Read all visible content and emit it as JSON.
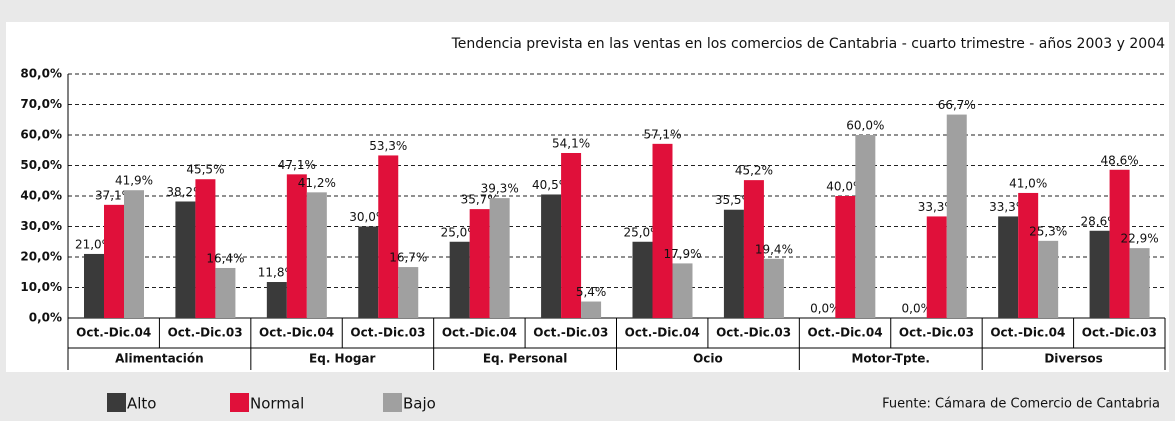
{
  "chart_data": {
    "type": "bar",
    "title": "Tendencia prevista en las ventas en los comercios de Cantabria - cuarto trimestre - años 2003 y 2004",
    "source": "Fuente: Cámara de Comercio de Cantabria",
    "categories": [
      "Oct.-Dic.04",
      "Oct.-Dic.03",
      "Oct.-Dic.04",
      "Oct.-Dic.03",
      "Oct.-Dic.04",
      "Oct.-Dic.03",
      "Oct.-Dic.04",
      "Oct.-Dic.03",
      "Oct.-Dic.04",
      "Oct.-Dic.03",
      "Oct.-Dic.04",
      "Oct.-Dic.03"
    ],
    "groups": [
      "Alimentación",
      "Eq. Hogar",
      "Eq. Personal",
      "Ocio",
      "Motor-Tpte.",
      "Diversos"
    ],
    "series": [
      {
        "name": "Alto",
        "color": "#3a3a3a",
        "values": [
          21.0,
          38.2,
          11.8,
          30.0,
          25.0,
          40.5,
          25.0,
          35.5,
          0.0,
          0.0,
          33.3,
          28.6
        ],
        "value_labels": [
          "21,0%",
          "38,2%",
          "11,8%",
          "30,0%",
          "25,0%",
          "40,5%",
          "25,0%",
          "35,5%",
          "0,0%",
          "0,0%",
          "33,3%",
          "28,6%"
        ]
      },
      {
        "name": "Normal",
        "color": "#e0103a",
        "values": [
          37.1,
          45.5,
          47.1,
          53.3,
          35.7,
          54.1,
          57.1,
          45.2,
          40.0,
          33.3,
          41.0,
          48.6
        ],
        "value_labels": [
          "37,1%",
          "45,5%",
          "47,1%",
          "53,3%",
          "35,7%",
          "54,1%",
          "57,1%",
          "45,2%",
          "40,0%",
          "33,3%",
          "41,0%",
          "48,6%"
        ]
      },
      {
        "name": "Bajo",
        "color": "#a0a0a0",
        "values": [
          41.9,
          16.4,
          41.2,
          16.7,
          39.3,
          5.4,
          17.9,
          19.4,
          60.0,
          66.7,
          25.3,
          22.9
        ],
        "value_labels": [
          "41,9%",
          "16,4%",
          "41,2%",
          "16,7%",
          "39,3%",
          "5,4%",
          "17,9%",
          "19,4%",
          "60,0%",
          "66,7%",
          "25,3%",
          "22,9%"
        ]
      }
    ],
    "ylim": [
      0,
      80
    ],
    "yticks": [
      {
        "value": 0,
        "label": "0,0%"
      },
      {
        "value": 10,
        "label": "10,0%"
      },
      {
        "value": 20,
        "label": "20,0%"
      },
      {
        "value": 30,
        "label": "30,0%"
      },
      {
        "value": 40,
        "label": "40,0%"
      },
      {
        "value": 50,
        "label": "50,0%"
      },
      {
        "value": 60,
        "label": "60,0%"
      },
      {
        "value": 70,
        "label": "70,0%"
      },
      {
        "value": 80,
        "label": "80,0%"
      }
    ],
    "grid": true
  }
}
